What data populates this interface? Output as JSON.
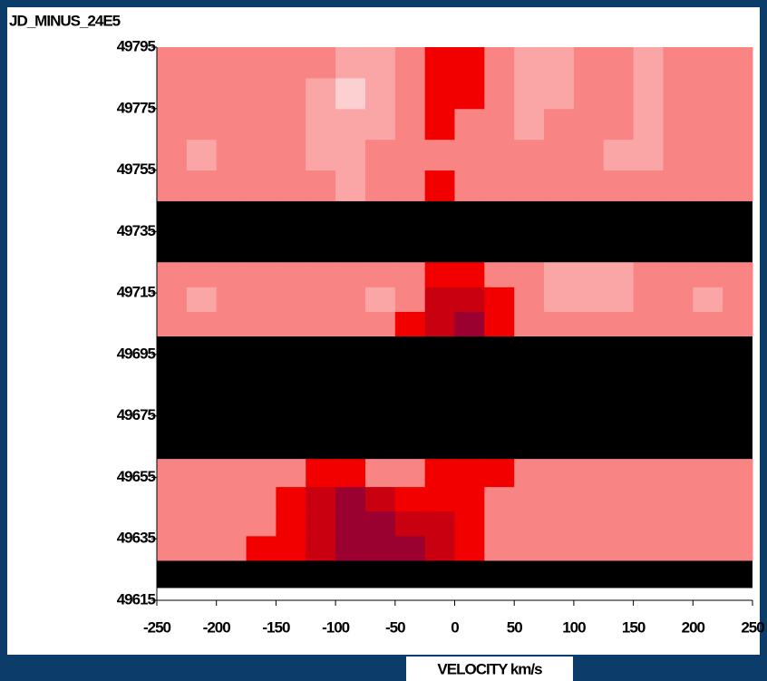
{
  "chart_data": {
    "type": "heatmap",
    "title": "JD_MINUS_24E5",
    "xlabel": "VELOCITY km/s",
    "x_bins": [
      -250,
      -225,
      -200,
      -175,
      -150,
      -125,
      -100,
      -75,
      -50,
      -25,
      0,
      25,
      50,
      75,
      100,
      125,
      150,
      175,
      200,
      225,
      250
    ],
    "y_bins": [
      49619,
      49628,
      49636,
      49644,
      49652,
      49661,
      49701,
      49709,
      49717,
      49725,
      49745,
      49755,
      49765,
      49775,
      49785,
      49795
    ],
    "values": [
      [
        null,
        null,
        null,
        null,
        null,
        null,
        null,
        null,
        null,
        null,
        null,
        null,
        null,
        null,
        null,
        null,
        null,
        null,
        null,
        null
      ],
      [
        3,
        3,
        3,
        4,
        4,
        5,
        6,
        6,
        6,
        5,
        4,
        3,
        3,
        3,
        3,
        3,
        3,
        3,
        3,
        3
      ],
      [
        3,
        3,
        3,
        3,
        4,
        5,
        6,
        6,
        5,
        5,
        4,
        3,
        3,
        3,
        3,
        3,
        3,
        3,
        3,
        3
      ],
      [
        3,
        3,
        3,
        3,
        4,
        5,
        6,
        5,
        4,
        4,
        4,
        3,
        3,
        3,
        3,
        3,
        3,
        3,
        3,
        3
      ],
      [
        3,
        3,
        3,
        3,
        3,
        4,
        4,
        3,
        3,
        4,
        4,
        4,
        3,
        3,
        3,
        3,
        3,
        3,
        3,
        3
      ],
      [
        null,
        null,
        null,
        null,
        null,
        null,
        null,
        null,
        null,
        null,
        null,
        null,
        null,
        null,
        null,
        null,
        null,
        null,
        null,
        null
      ],
      [
        3,
        3,
        3,
        3,
        3,
        3,
        3,
        3,
        4,
        5,
        6,
        4,
        3,
        3,
        3,
        3,
        3,
        3,
        3,
        3
      ],
      [
        3,
        2,
        3,
        3,
        3,
        3,
        3,
        2,
        3,
        5,
        5,
        4,
        3,
        2,
        2,
        2,
        3,
        3,
        2,
        3
      ],
      [
        3,
        3,
        3,
        3,
        3,
        3,
        3,
        3,
        3,
        4,
        4,
        3,
        3,
        2,
        2,
        2,
        3,
        3,
        3,
        3
      ],
      [
        null,
        null,
        null,
        null,
        null,
        null,
        null,
        null,
        null,
        null,
        null,
        null,
        null,
        null,
        null,
        null,
        null,
        null,
        null,
        null
      ],
      [
        3,
        3,
        3,
        3,
        3,
        3,
        2,
        3,
        3,
        4,
        3,
        3,
        3,
        3,
        3,
        3,
        3,
        3,
        3,
        3
      ],
      [
        3,
        2,
        3,
        3,
        3,
        2,
        2,
        3,
        3,
        3,
        3,
        3,
        3,
        3,
        3,
        2,
        2,
        3,
        3,
        3
      ],
      [
        3,
        3,
        3,
        3,
        3,
        2,
        2,
        2,
        3,
        4,
        3,
        3,
        2,
        3,
        3,
        3,
        2,
        3,
        3,
        3
      ],
      [
        3,
        3,
        3,
        3,
        3,
        2,
        1,
        2,
        3,
        4,
        4,
        3,
        2,
        2,
        3,
        3,
        2,
        3,
        3,
        3
      ],
      [
        3,
        3,
        3,
        3,
        3,
        3,
        2,
        2,
        3,
        4,
        4,
        3,
        2,
        2,
        3,
        3,
        2,
        3,
        3,
        3
      ]
    ],
    "level_colors": [
      "#ffe4e4",
      "#fcd0d0",
      "#fba6a6",
      "#f88484",
      "#f20000",
      "#c80010",
      "#9a0030"
    ],
    "missing_color": "#000000",
    "xlim": [
      -250,
      250
    ],
    "xticks": [
      -250,
      -200,
      -150,
      -100,
      -50,
      0,
      50,
      100,
      150,
      200,
      250
    ],
    "ylim": [
      49615,
      49795
    ],
    "yticks": [
      49615,
      49635,
      49655,
      49675,
      49695,
      49715,
      49735,
      49755,
      49775,
      49795
    ]
  }
}
